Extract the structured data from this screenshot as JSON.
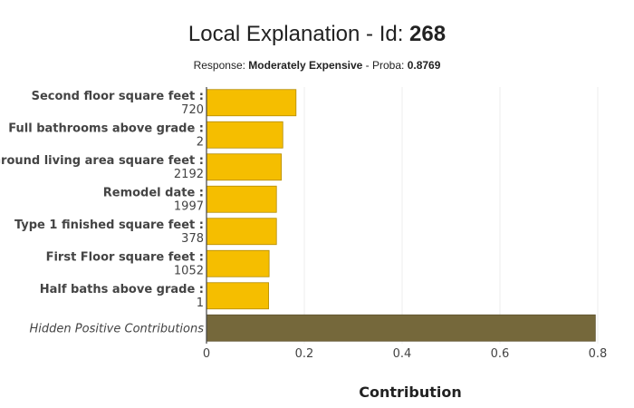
{
  "colors": {
    "positive": "#f5be00",
    "positive_edge": "#b38b00",
    "hidden": "#75683b",
    "hidden_edge": "#5e532f"
  },
  "chart_data": {
    "type": "bar",
    "orientation": "horizontal",
    "title": {
      "prefix": "Local Explanation - Id: ",
      "id": "268"
    },
    "subtitle": {
      "response_prefix": "Response: ",
      "response": "Moderately Expensive",
      "proba_prefix": " - Proba: ",
      "proba": "0.8769"
    },
    "xlabel": "Contribution",
    "xlim": [
      0,
      0.8
    ],
    "xticks": [
      {
        "value": 0,
        "label": "0"
      },
      {
        "value": 0.2,
        "label": "0.2"
      },
      {
        "value": 0.4,
        "label": "0.4"
      },
      {
        "value": 0.6,
        "label": "0.6"
      },
      {
        "value": 0.8,
        "label": "0.8"
      }
    ],
    "grid": true,
    "bars": [
      {
        "name": "Second floor square feet :",
        "value_label": "720",
        "contribution": 0.183
      },
      {
        "name": "Full bathrooms above grade :",
        "value_label": "2",
        "contribution": 0.156
      },
      {
        "name": "Ground living area square feet :",
        "value_label": "2192",
        "contribution": 0.153
      },
      {
        "name": "Remodel date :",
        "value_label": "1997",
        "contribution": 0.143
      },
      {
        "name": "Type 1 finished square feet :",
        "value_label": "378",
        "contribution": 0.143
      },
      {
        "name": "First Floor square feet :",
        "value_label": "1052",
        "contribution": 0.128
      },
      {
        "name": "Half baths above grade :",
        "value_label": "1",
        "contribution": 0.127
      },
      {
        "name": "Hidden Positive Contributions",
        "value_label": "",
        "contribution": 0.795,
        "hidden": true
      }
    ]
  }
}
